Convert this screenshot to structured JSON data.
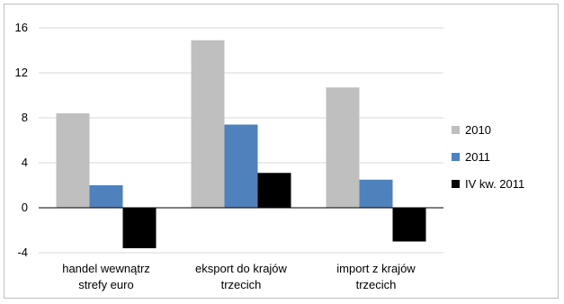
{
  "chart_data": {
    "type": "bar",
    "categories": [
      [
        "handel wewnątrz",
        "strefy euro"
      ],
      [
        "eksport do krajów",
        "trzecich"
      ],
      [
        "import z krajów",
        "trzecich"
      ]
    ],
    "series": [
      {
        "name": "2010",
        "color": "#bfbfbf",
        "values": [
          8.4,
          14.9,
          10.7
        ]
      },
      {
        "name": "2011",
        "color": "#4f81bd",
        "values": [
          2.0,
          7.4,
          2.5
        ]
      },
      {
        "name": "IV kw. 2011",
        "color": "#000000",
        "values": [
          -3.6,
          3.1,
          -3.0
        ]
      }
    ],
    "yticks": [
      "-4",
      "0",
      "4",
      "8",
      "12",
      "16"
    ],
    "ylim": [
      -4,
      16
    ],
    "grid": true,
    "legend_position": "right"
  }
}
